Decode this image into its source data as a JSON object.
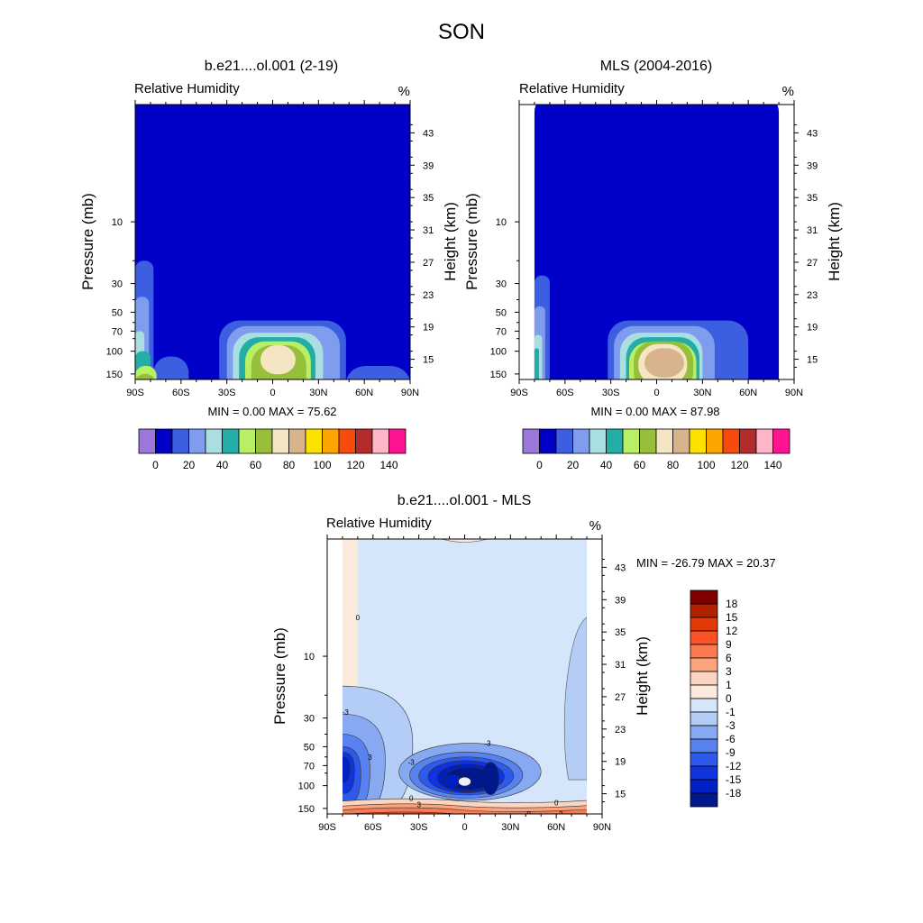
{
  "figure": {
    "title": "SON",
    "panels": [
      {
        "title": "b.e21....ol.001 (2-19)",
        "left_string": "Relative Humidity",
        "right_string": "%",
        "y_label": "Pressure (mb)",
        "y2_label": "Height (km)",
        "min_max": "MIN =   0.00  MAX =  75.62"
      },
      {
        "title": "MLS (2004-2016)",
        "left_string": "Relative Humidity",
        "right_string": "%",
        "y_label": "Pressure (mb)",
        "y2_label": "Height (km)",
        "min_max": "MIN =   0.00  MAX =  87.98"
      },
      {
        "title": "b.e21....ol.001 - MLS",
        "left_string": "Relative Humidity",
        "right_string": "%",
        "y_label": "Pressure (mb)",
        "y2_label": "Height (km)",
        "min_max": "MIN = -26.79  MAX =  20.37"
      }
    ]
  },
  "chart_data": [
    {
      "type": "heatmap",
      "subtype": "filled-contour",
      "title": "b.e21....ol.001 (2-19)",
      "field": "Relative Humidity",
      "units": "%",
      "x_ticks": [
        "90S",
        "60S",
        "30S",
        "0",
        "30N",
        "60N",
        "90N"
      ],
      "x_range": [
        -90,
        90
      ],
      "y_ticks": [
        "10",
        "30",
        "50",
        "70",
        "100",
        "150"
      ],
      "y_tick_values": [
        10,
        30,
        50,
        70,
        100,
        150
      ],
      "y_range": [
        1,
        200
      ],
      "y_scale": "log",
      "y_reversed": true,
      "y2_ticks": [
        "43",
        "39",
        "35",
        "31",
        "27",
        "23",
        "19",
        "15"
      ],
      "min": 0.0,
      "max": 75.62,
      "regions": [
        {
          "level": 0,
          "lat": [
            -90,
            90
          ],
          "p": [
            1,
            200
          ]
        },
        {
          "level": 10,
          "lat": [
            -90,
            -78
          ],
          "p": [
            20,
            200
          ]
        },
        {
          "level": 10,
          "lat": [
            -78,
            -55
          ],
          "p": [
            110,
            200
          ]
        },
        {
          "level": 10,
          "lat": [
            -35,
            48
          ],
          "p": [
            58,
            200
          ]
        },
        {
          "level": 10,
          "lat": [
            48,
            90
          ],
          "p": [
            130,
            200
          ]
        },
        {
          "level": 20,
          "lat": [
            -90,
            -81
          ],
          "p": [
            38,
            200
          ]
        },
        {
          "level": 20,
          "lat": [
            -30,
            44
          ],
          "p": [
            64,
            200
          ]
        },
        {
          "level": 30,
          "lat": [
            -90,
            -84
          ],
          "p": [
            70,
            200
          ]
        },
        {
          "level": 30,
          "lat": [
            -26,
            33
          ],
          "p": [
            72,
            200
          ]
        },
        {
          "level": 40,
          "lat": [
            -90,
            -80
          ],
          "p": [
            100,
            200
          ]
        },
        {
          "level": 40,
          "lat": [
            -22,
            28
          ],
          "p": [
            78,
            200
          ]
        },
        {
          "level": 50,
          "lat": [
            -90,
            -76
          ],
          "p": [
            130,
            200
          ]
        },
        {
          "level": 50,
          "lat": [
            -18,
            25
          ],
          "p": [
            84,
            200
          ]
        },
        {
          "level": 60,
          "lat": [
            -90,
            -77
          ],
          "p": [
            150,
            200
          ]
        },
        {
          "level": 60,
          "lat": [
            -14,
            22
          ],
          "p": [
            90,
            200
          ]
        },
        {
          "level": 70,
          "lat": [
            -8,
            15
          ],
          "p": [
            90,
            110
          ]
        }
      ]
    },
    {
      "type": "heatmap",
      "subtype": "filled-contour",
      "title": "MLS (2004-2016)",
      "field": "Relative Humidity",
      "units": "%",
      "x_ticks": [
        "90S",
        "60S",
        "30S",
        "0",
        "30N",
        "60N",
        "90N"
      ],
      "x_range": [
        -90,
        90
      ],
      "y_ticks": [
        "10",
        "30",
        "50",
        "70",
        "100",
        "150"
      ],
      "y_tick_values": [
        10,
        30,
        50,
        70,
        100,
        150
      ],
      "y_range": [
        1,
        200
      ],
      "y_scale": "log",
      "y_reversed": true,
      "y2_ticks": [
        "43",
        "39",
        "35",
        "31",
        "27",
        "23",
        "19",
        "15"
      ],
      "min": 0.0,
      "max": 87.98,
      "data_lat_range": [
        -80,
        80
      ],
      "regions": [
        {
          "level": 0,
          "lat": [
            -80,
            80
          ],
          "p": [
            1,
            200
          ]
        },
        {
          "level": 10,
          "lat": [
            -80,
            -70
          ],
          "p": [
            26,
            200
          ]
        },
        {
          "level": 10,
          "lat": [
            -32,
            60
          ],
          "p": [
            58,
            200
          ]
        },
        {
          "level": 20,
          "lat": [
            -80,
            -73
          ],
          "p": [
            45,
            200
          ]
        },
        {
          "level": 20,
          "lat": [
            -28,
            38
          ],
          "p": [
            64,
            200
          ]
        },
        {
          "level": 30,
          "lat": [
            -80,
            -75
          ],
          "p": [
            75,
            200
          ]
        },
        {
          "level": 30,
          "lat": [
            -24,
            30
          ],
          "p": [
            72,
            200
          ]
        },
        {
          "level": 40,
          "lat": [
            -80,
            -77
          ],
          "p": [
            95,
            200
          ]
        },
        {
          "level": 40,
          "lat": [
            -20,
            28
          ],
          "p": [
            78,
            200
          ]
        },
        {
          "level": 50,
          "lat": [
            -18,
            26
          ],
          "p": [
            85,
            160
          ]
        },
        {
          "level": 60,
          "lat": [
            -15,
            24
          ],
          "p": [
            84,
            140
          ]
        },
        {
          "level": 70,
          "lat": [
            -12,
            20
          ],
          "p": [
            88,
            125
          ]
        },
        {
          "level": 80,
          "lat": [
            -8,
            18
          ],
          "p": [
            95,
            112
          ]
        }
      ]
    },
    {
      "type": "heatmap",
      "subtype": "line-contour-filled",
      "title": "b.e21....ol.001 - MLS",
      "field": "Relative Humidity",
      "units": "%",
      "x_ticks": [
        "90S",
        "60S",
        "30S",
        "0",
        "30N",
        "60N",
        "90N"
      ],
      "x_range": [
        -90,
        90
      ],
      "y_ticks": [
        "10",
        "30",
        "50",
        "70",
        "100",
        "150"
      ],
      "y_tick_values": [
        10,
        30,
        50,
        70,
        100,
        150
      ],
      "y_range": [
        1,
        200
      ],
      "y_scale": "log",
      "y_reversed": true,
      "y2_ticks": [
        "43",
        "39",
        "35",
        "31",
        "27",
        "23",
        "19",
        "15"
      ],
      "min": -26.79,
      "max": 20.37,
      "data_lat_range": [
        -80,
        80
      ],
      "contour_labels": [
        {
          "text": "0",
          "lat": -70,
          "p": 5
        },
        {
          "text": "-3",
          "lat": -78,
          "p": 27
        },
        {
          "text": "3",
          "lat": -62,
          "p": 60
        },
        {
          "text": "-3",
          "lat": -35,
          "p": 66
        },
        {
          "text": "-3",
          "lat": 15,
          "p": 47
        },
        {
          "text": "0",
          "lat": -35,
          "p": 125
        },
        {
          "text": "3",
          "lat": -30,
          "p": 140
        },
        {
          "text": "0",
          "lat": 60,
          "p": 135
        },
        {
          "text": "3",
          "lat": 63,
          "p": 165
        },
        {
          "text": "9",
          "lat": 42,
          "p": 165
        }
      ]
    }
  ],
  "colorbars": [
    {
      "orientation": "horizontal",
      "colors": [
        "#9a77d8",
        "#0000c8",
        "#3c5ee0",
        "#7f9cee",
        "#aadfe1",
        "#22aea6",
        "#b9ef65",
        "#98bf3a",
        "#f4e6c5",
        "#d9b38c",
        "#fde100",
        "#fca500",
        "#f74b0d",
        "#b42b2b",
        "#feb5c7",
        "#fe1493"
      ],
      "labels": [
        "0",
        "20",
        "40",
        "60",
        "80",
        "100",
        "120",
        "140"
      ]
    },
    {
      "orientation": "horizontal",
      "colors": [
        "#9a77d8",
        "#0000c8",
        "#3c5ee0",
        "#7f9cee",
        "#aadfe1",
        "#22aea6",
        "#b9ef65",
        "#98bf3a",
        "#f4e6c5",
        "#d9b38c",
        "#fde100",
        "#fca500",
        "#f74b0d",
        "#b42b2b",
        "#feb5c7",
        "#fe1493"
      ],
      "labels": [
        "0",
        "20",
        "40",
        "60",
        "80",
        "100",
        "120",
        "140"
      ]
    },
    {
      "orientation": "vertical",
      "colors": [
        "#7e0000",
        "#b32200",
        "#e23a08",
        "#fc5226",
        "#fc7a52",
        "#fca37e",
        "#fcd5c2",
        "#fbeadd",
        "#d6e6fa",
        "#b3cdf6",
        "#86a9f2",
        "#5882ef",
        "#2e5aeb",
        "#1033e0",
        "#0020c4",
        "#00188c"
      ],
      "labels": [
        "18",
        "15",
        "12",
        "9",
        "6",
        "3",
        "1",
        "0",
        "-1",
        "-3",
        "-6",
        "-9",
        "-12",
        "-15",
        "-18"
      ]
    }
  ],
  "diff_colors": {
    "zero_band": "#d6e6fa",
    "pos_faint": "#fbeadd",
    "neg_levels": [
      "#b3cdf6",
      "#86a9f2",
      "#5882ef",
      "#2e5aeb",
      "#1033e0",
      "#0020c4",
      "#00188c"
    ],
    "pos_levels": [
      "#fcd5c2",
      "#fca37e",
      "#fc7a52",
      "#fc5226",
      "#e23a08",
      "#b32200"
    ]
  }
}
